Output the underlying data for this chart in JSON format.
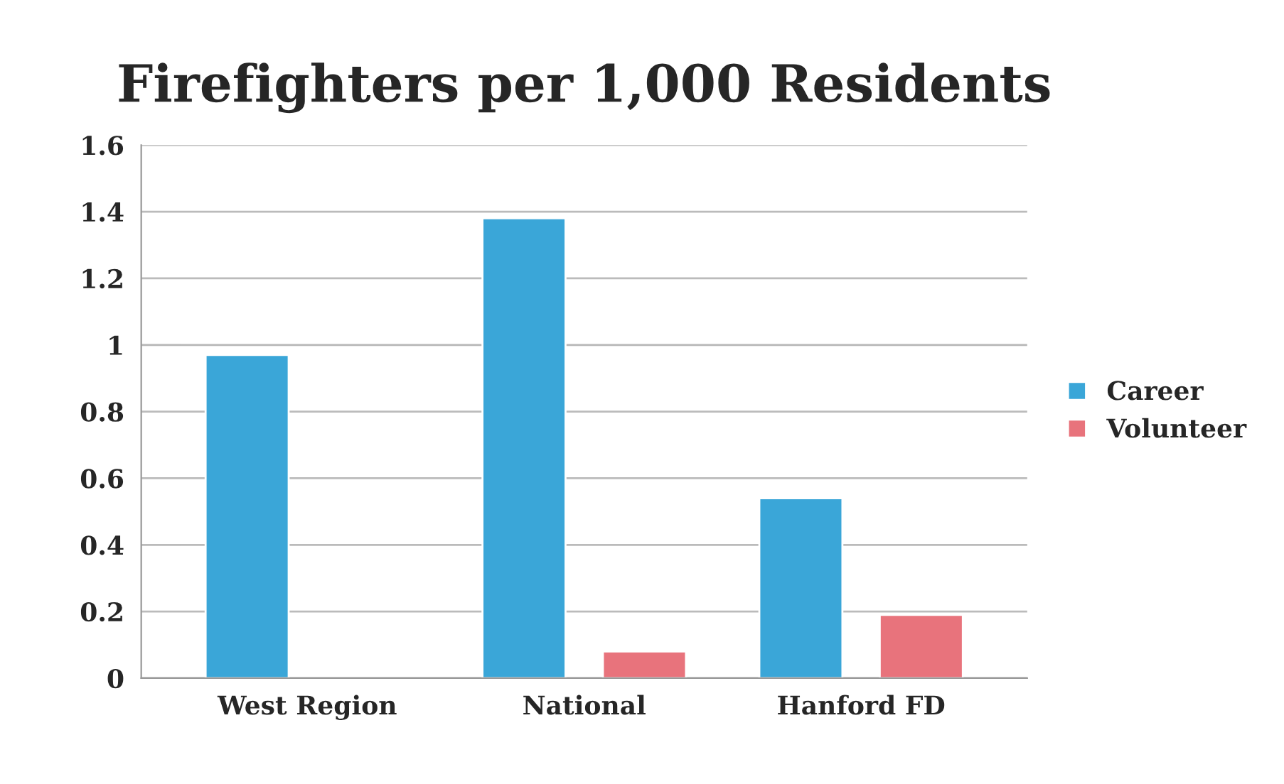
{
  "chart_data": {
    "type": "bar",
    "title": "Firefighters per 1,000 Residents",
    "categories": [
      "West Region",
      "National",
      "Hanford FD"
    ],
    "series": [
      {
        "name": "Career",
        "color": "#3aa6d8",
        "values": [
          0.97,
          1.38,
          0.54
        ]
      },
      {
        "name": "Volunteer",
        "color": "#e8737c",
        "values": [
          null,
          0.08,
          0.19
        ]
      }
    ],
    "ylim": [
      0,
      1.6
    ],
    "yticks": [
      {
        "value": 0,
        "label": "0"
      },
      0.2,
      0.4,
      0.6,
      0.8,
      {
        "value": 1,
        "label": "1"
      },
      1.2,
      1.4,
      1.6
    ],
    "grid": "y",
    "legend": "right"
  }
}
